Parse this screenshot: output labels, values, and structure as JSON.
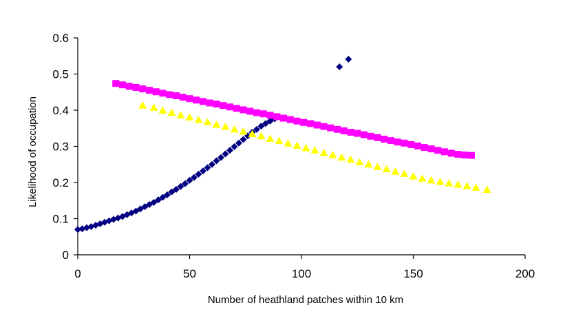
{
  "chart_data": {
    "type": "scatter",
    "title": "",
    "xlabel": "Number of heathland patches within 10 km",
    "ylabel": "Likelihood of occupation",
    "xlim": [
      0,
      200
    ],
    "ylim": [
      0,
      0.6
    ],
    "xticks": [
      0,
      50,
      100,
      150,
      200
    ],
    "yticks": [
      0,
      0.1,
      0.2,
      0.3,
      0.4,
      0.5,
      0.6
    ],
    "x_tick_labels": [
      "0",
      "50",
      "100",
      "150",
      "200"
    ],
    "y_tick_labels": [
      "0",
      "0.1",
      "0.2",
      "0.3",
      "0.4",
      "0.5",
      "0.6"
    ],
    "grid": false,
    "legend": "none",
    "series": [
      {
        "marker": "diamond",
        "color": "#000080",
        "x": [
          0,
          2,
          4,
          6,
          8,
          10,
          12,
          14,
          16,
          18,
          20,
          22,
          24,
          26,
          28,
          30,
          32,
          34,
          36,
          38,
          40,
          42,
          44,
          46,
          48,
          50,
          52,
          54,
          56,
          58,
          60,
          62,
          64,
          66,
          68,
          70,
          72,
          74,
          76,
          78,
          80,
          82,
          84,
          86,
          88,
          90,
          117,
          121
        ],
        "y": [
          0.07,
          0.072,
          0.075,
          0.078,
          0.082,
          0.086,
          0.09,
          0.094,
          0.098,
          0.102,
          0.106,
          0.111,
          0.116,
          0.121,
          0.127,
          0.133,
          0.139,
          0.145,
          0.152,
          0.159,
          0.166,
          0.174,
          0.181,
          0.189,
          0.197,
          0.206,
          0.214,
          0.223,
          0.232,
          0.241,
          0.25,
          0.26,
          0.269,
          0.279,
          0.289,
          0.299,
          0.309,
          0.319,
          0.329,
          0.339,
          0.347,
          0.356,
          0.363,
          0.37,
          0.376,
          0.382,
          0.52,
          0.541
        ]
      },
      {
        "marker": "square",
        "color": "#ff00ff",
        "x": [
          17,
          20,
          23,
          26,
          29,
          32,
          35,
          38,
          41,
          44,
          47,
          50,
          53,
          56,
          59,
          62,
          65,
          68,
          71,
          74,
          77,
          80,
          83,
          86,
          89,
          92,
          95,
          98,
          101,
          104,
          107,
          110,
          113,
          116,
          119,
          122,
          125,
          128,
          131,
          134,
          137,
          140,
          143,
          146,
          149,
          152,
          155,
          158,
          161,
          164,
          167,
          170,
          173,
          176
        ],
        "y": [
          0.474,
          0.47,
          0.466,
          0.463,
          0.459,
          0.455,
          0.451,
          0.447,
          0.443,
          0.44,
          0.436,
          0.432,
          0.428,
          0.424,
          0.42,
          0.417,
          0.413,
          0.409,
          0.405,
          0.401,
          0.397,
          0.393,
          0.39,
          0.386,
          0.382,
          0.378,
          0.374,
          0.37,
          0.366,
          0.363,
          0.359,
          0.355,
          0.351,
          0.347,
          0.343,
          0.339,
          0.336,
          0.332,
          0.328,
          0.324,
          0.32,
          0.316,
          0.312,
          0.309,
          0.305,
          0.301,
          0.297,
          0.293,
          0.289,
          0.285,
          0.281,
          0.278,
          0.276,
          0.275
        ]
      },
      {
        "marker": "triangle",
        "color": "#ffff00",
        "x": [
          29,
          34,
          38,
          42,
          46,
          50,
          54,
          58,
          62,
          66,
          70,
          74,
          78,
          82,
          86,
          90,
          94,
          98,
          102,
          106,
          110,
          114,
          118,
          122,
          126,
          130,
          134,
          138,
          142,
          146,
          150,
          154,
          158,
          162,
          166,
          170,
          174,
          178,
          183
        ],
        "y": [
          0.413,
          0.407,
          0.399,
          0.393,
          0.386,
          0.38,
          0.373,
          0.367,
          0.36,
          0.354,
          0.347,
          0.341,
          0.334,
          0.328,
          0.321,
          0.315,
          0.308,
          0.302,
          0.295,
          0.289,
          0.282,
          0.276,
          0.269,
          0.263,
          0.256,
          0.25,
          0.243,
          0.237,
          0.23,
          0.224,
          0.217,
          0.211,
          0.206,
          0.202,
          0.198,
          0.194,
          0.19,
          0.186,
          0.18
        ]
      }
    ]
  }
}
